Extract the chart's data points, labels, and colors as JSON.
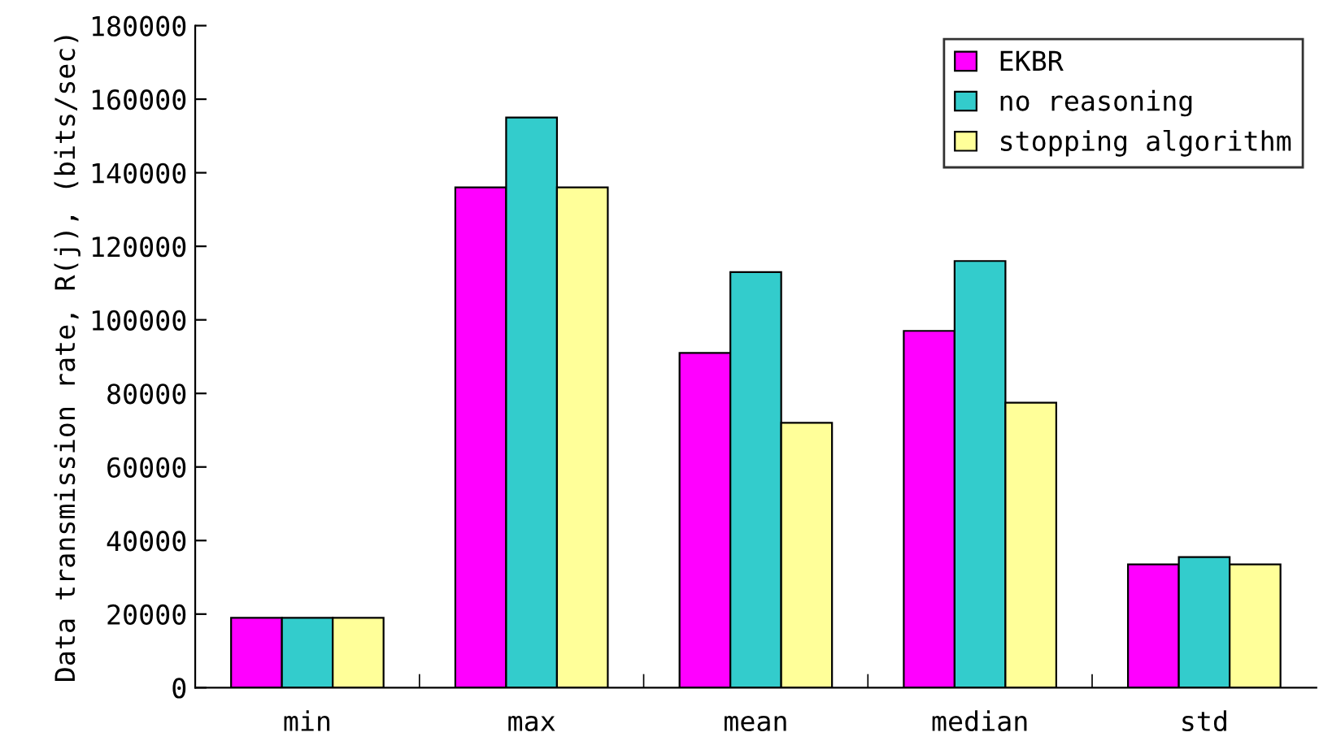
{
  "chart_data": {
    "type": "bar",
    "ylabel": "Data transmission rate, R(j), (bits/sec)",
    "categories": [
      "min",
      "max",
      "mean",
      "median",
      "std"
    ],
    "series": [
      {
        "name": "EKBR",
        "color": "#ff00ff",
        "values": [
          19000,
          136000,
          91000,
          97000,
          33500
        ]
      },
      {
        "name": "no reasoning",
        "color": "#33cccc",
        "values": [
          19000,
          155000,
          113000,
          116000,
          35500
        ]
      },
      {
        "name": "stopping algorithm",
        "color": "#ffff99",
        "values": [
          19000,
          136000,
          72000,
          77500,
          33500
        ]
      }
    ],
    "ylim": [
      0,
      180000
    ],
    "yticks": [
      0,
      20000,
      40000,
      60000,
      80000,
      100000,
      120000,
      140000,
      160000,
      180000
    ],
    "grid": false,
    "legend": "top right"
  }
}
